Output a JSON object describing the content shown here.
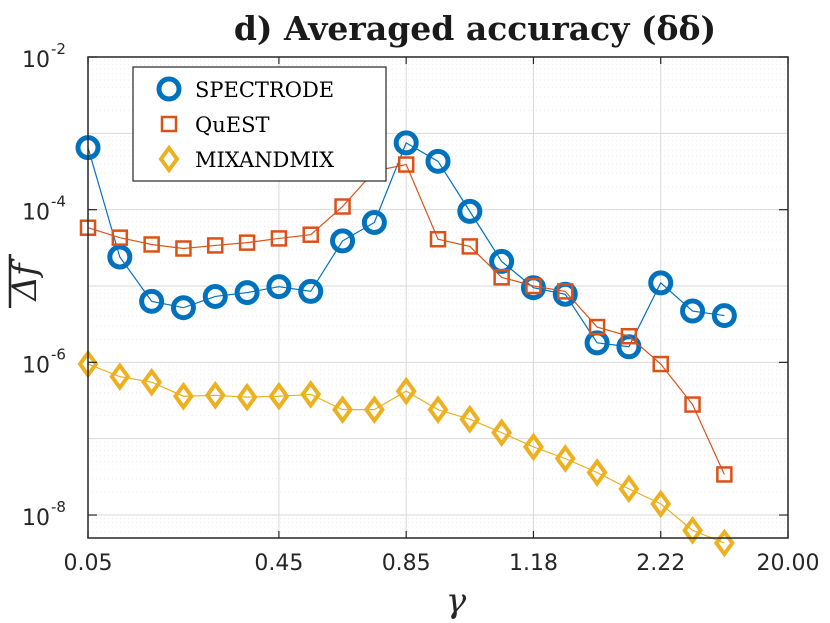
{
  "chart_data": {
    "type": "line",
    "title": "d) Averaged accuracy (δδ)",
    "xlabel": "γ",
    "ylabel": "Δf",
    "yscale": "log",
    "ylim": [
      5e-09,
      0.01
    ],
    "x_index_range": [
      1,
      23
    ],
    "x_ticks": [
      {
        "index": 1,
        "label": "0.05"
      },
      {
        "index": 7,
        "label": "0.45"
      },
      {
        "index": 11,
        "label": "0.85"
      },
      {
        "index": 15,
        "label": "1.18"
      },
      {
        "index": 19,
        "label": "2.22"
      },
      {
        "index": 23,
        "label": "20.00"
      }
    ],
    "y_ticks": [
      {
        "value": 1e-08,
        "base": "10",
        "exp": "-8"
      },
      {
        "value": 1e-06,
        "base": "10",
        "exp": "-6"
      },
      {
        "value": 0.0001,
        "base": "10",
        "exp": "-4"
      },
      {
        "value": 0.01,
        "base": "10",
        "exp": "-2"
      }
    ],
    "grid": true,
    "legend_position": "top-left",
    "series": [
      {
        "name": "SPECTRODE",
        "marker": "circle",
        "color": "#0072BD",
        "values": [
          0.00065,
          2.4e-05,
          6.3e-06,
          5.2e-06,
          7.3e-06,
          8.2e-06,
          9.8e-06,
          8.5e-06,
          3.9e-05,
          6.8e-05,
          0.00075,
          0.00043,
          9.5e-05,
          2.1e-05,
          9.5e-06,
          7.8e-06,
          1.8e-06,
          1.6e-06,
          1.1e-05,
          4.7e-06,
          4.1e-06
        ]
      },
      {
        "name": "QuEST",
        "marker": "square",
        "color": "#D95319",
        "values": [
          5.8e-05,
          4.3e-05,
          3.5e-05,
          3.1e-05,
          3.4e-05,
          3.7e-05,
          4.2e-05,
          4.7e-05,
          0.00011,
          0.00032,
          0.00039,
          4.1e-05,
          3.3e-05,
          1.3e-05,
          1e-05,
          8.5e-06,
          2.9e-06,
          2.2e-06,
          9.5e-07,
          2.8e-07,
          3.4e-08
        ]
      },
      {
        "name": "MIXANDMIX",
        "marker": "diamond",
        "color": "#EDB120",
        "values": [
          9.5e-07,
          6.5e-07,
          5.5e-07,
          3.6e-07,
          3.7e-07,
          3.5e-07,
          3.6e-07,
          3.8e-07,
          2.4e-07,
          2.4e-07,
          4.2e-07,
          2.4e-07,
          1.8e-07,
          1.2e-07,
          7.8e-08,
          5.5e-08,
          3.6e-08,
          2.2e-08,
          1.4e-08,
          6.3e-09,
          4.3e-09
        ]
      }
    ],
    "x_indices": [
      1,
      2,
      3,
      4,
      5,
      6,
      7,
      8,
      9,
      10,
      11,
      12,
      13,
      14,
      15,
      16,
      17,
      18,
      19,
      20,
      21
    ]
  }
}
